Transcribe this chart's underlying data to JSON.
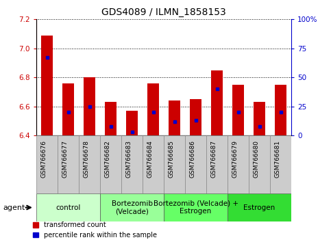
{
  "title": "GDS4089 / ILMN_1858153",
  "samples": [
    "GSM766676",
    "GSM766677",
    "GSM766678",
    "GSM766682",
    "GSM766683",
    "GSM766684",
    "GSM766685",
    "GSM766686",
    "GSM766687",
    "GSM766679",
    "GSM766680",
    "GSM766681"
  ],
  "bar_values": [
    7.09,
    6.76,
    6.8,
    6.63,
    6.57,
    6.76,
    6.64,
    6.65,
    6.85,
    6.75,
    6.63,
    6.75
  ],
  "percentile_values": [
    67,
    20,
    25,
    8,
    3,
    20,
    12,
    13,
    40,
    20,
    8,
    20
  ],
  "ymin": 6.4,
  "ymax": 7.2,
  "yticks": [
    6.4,
    6.6,
    6.8,
    7.0,
    7.2
  ],
  "right_yticks": [
    0,
    25,
    50,
    75,
    100
  ],
  "right_yticklabels": [
    "0",
    "25",
    "50",
    "75",
    "100%"
  ],
  "bar_color": "#CC0000",
  "dot_color": "#0000CC",
  "bar_width": 0.55,
  "group_colors": [
    "#CCFFCC",
    "#99FF99",
    "#66FF66",
    "#33DD33"
  ],
  "group_labels": [
    "control",
    "Bortezomib\n(Velcade)",
    "Bortezomib (Velcade) +\nEstrogen",
    "Estrogen"
  ],
  "group_starts": [
    0,
    3,
    6,
    9
  ],
  "group_ends": [
    3,
    6,
    9,
    12
  ],
  "legend_labels": [
    "transformed count",
    "percentile rank within the sample"
  ],
  "legend_colors": [
    "#CC0000",
    "#0000CC"
  ],
  "agent_label": "agent",
  "title_fontsize": 10,
  "tick_fontsize": 7.5,
  "xtick_fontsize": 6.5,
  "group_label_fontsize": 7.5,
  "legend_fontsize": 7,
  "bg_color": "#CCCCCC"
}
